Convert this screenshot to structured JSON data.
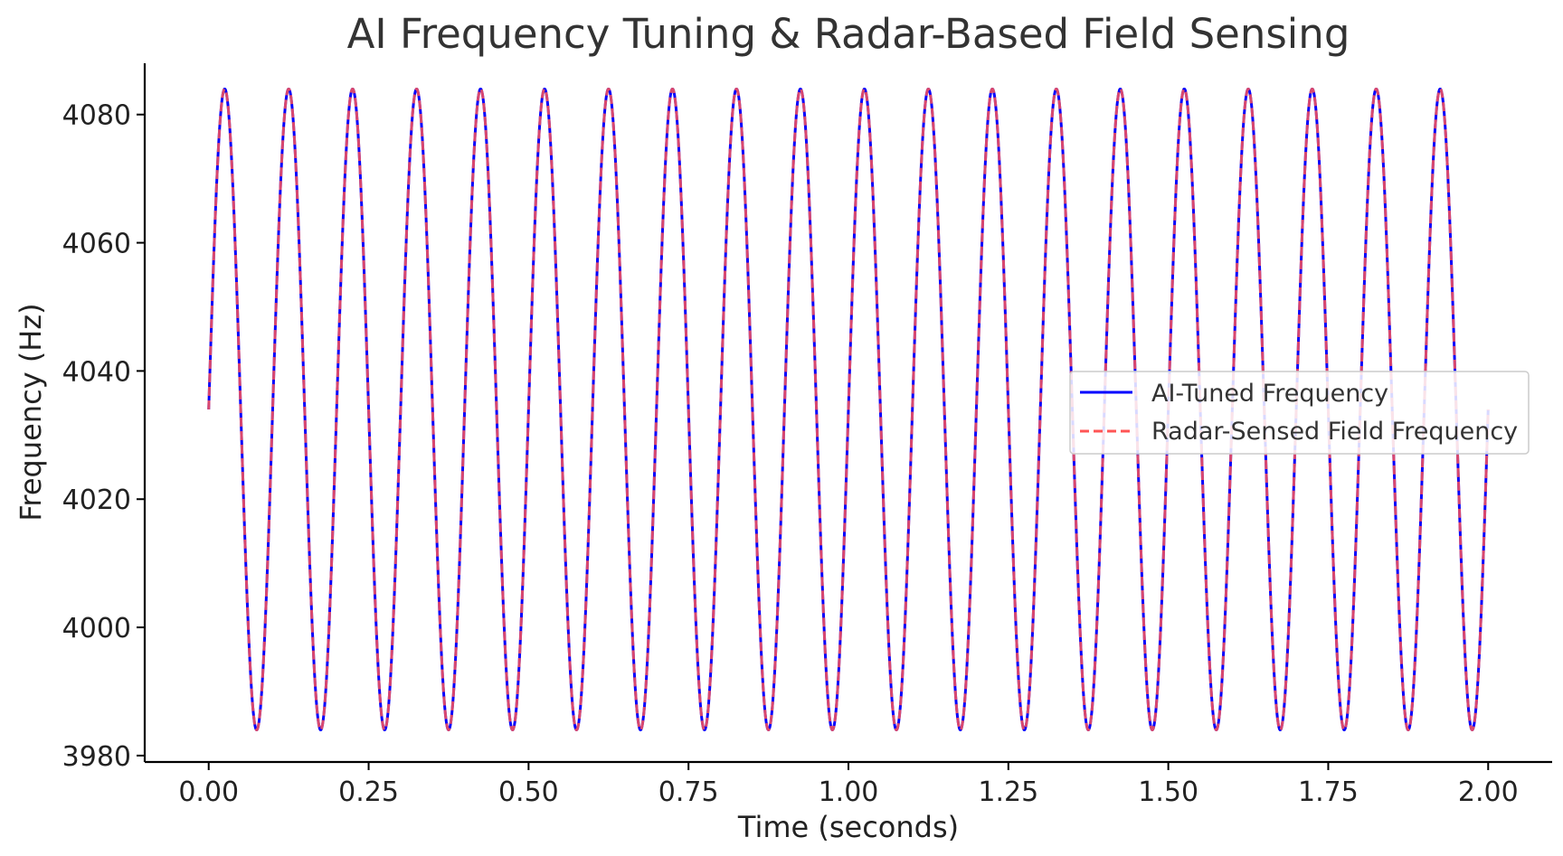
{
  "chart_data": {
    "type": "line",
    "title": "AI Frequency Tuning & Radar-Based Field Sensing",
    "xlabel": "Time (seconds)",
    "ylabel": "Frequency (Hz)",
    "xlim": [
      -0.1,
      2.1
    ],
    "ylim": [
      3979,
      4088
    ],
    "xticks": [
      0.0,
      0.25,
      0.5,
      0.75,
      1.0,
      1.25,
      1.5,
      1.75,
      2.0
    ],
    "xtick_labels": [
      "0.00",
      "0.25",
      "0.50",
      "0.75",
      "1.00",
      "1.25",
      "1.50",
      "1.75",
      "2.00"
    ],
    "yticks": [
      3980,
      4000,
      4020,
      4040,
      4060,
      4080
    ],
    "ytick_labels": [
      "3980",
      "4000",
      "4020",
      "4040",
      "4060",
      "4080"
    ],
    "grid": false,
    "legend_position": "center-right",
    "x_range": [
      0,
      2
    ],
    "signal": {
      "form": "sinusoid",
      "offset_hz": 4034,
      "amplitude_hz": 50,
      "frequency_hz": 10,
      "phase": 0
    },
    "series": [
      {
        "name": "AI-Tuned Frequency",
        "color": "#0000ff",
        "style": "solid"
      },
      {
        "name": "Radar-Sensed Field Frequency",
        "color": "#ff5555",
        "style": "dashed"
      }
    ]
  }
}
